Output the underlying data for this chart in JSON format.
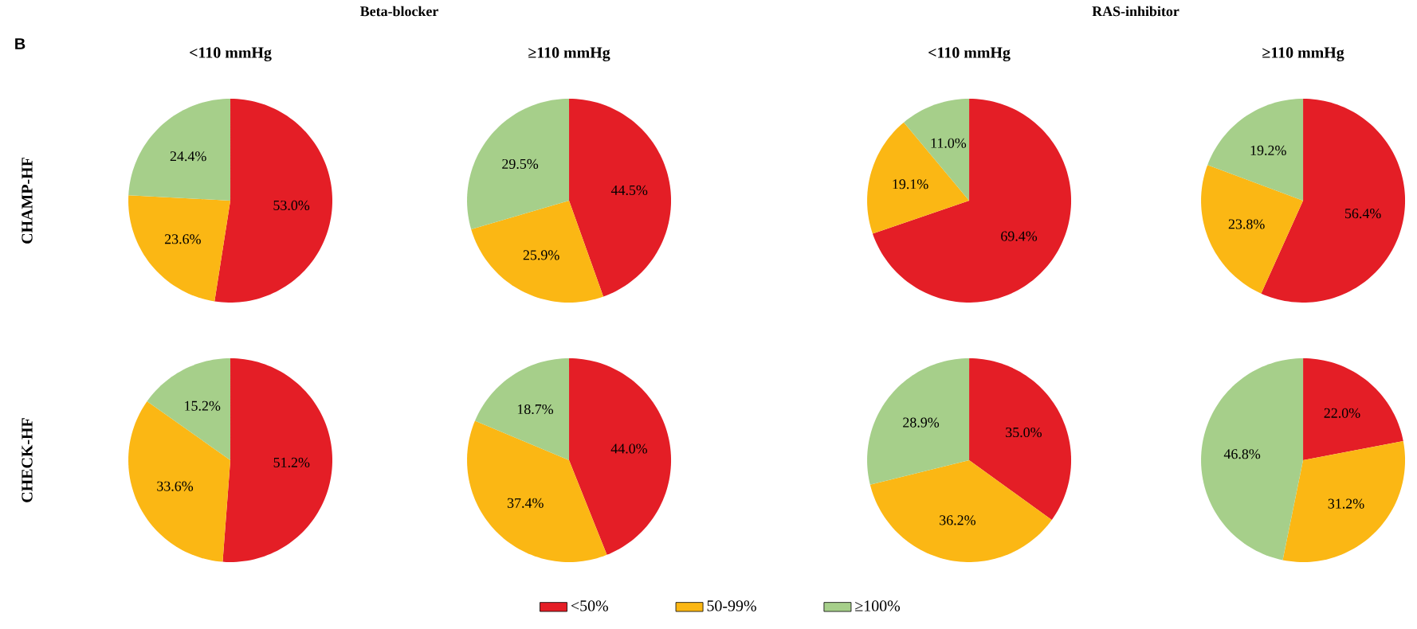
{
  "chart_data": [
    {
      "type": "pie",
      "title": "<110 mmHg",
      "ylabel": "CHAMP-HF",
      "annotations": [
        "B",
        "Beta-blocker"
      ],
      "categories": [
        null,
        null,
        null
      ],
      "values": [
        53.0,
        23.6,
        24.4
      ],
      "value_labels": [
        "53.0%",
        "23.6%",
        "24.4%"
      ],
      "colors": [
        "#e41e26",
        "#fbb714",
        "#a6cf8a"
      ]
    },
    {
      "type": "pie",
      "title": "≥110 mmHg",
      "categories": [
        null,
        null,
        null
      ],
      "values": [
        44.5,
        25.9,
        29.5
      ],
      "value_labels": [
        "44.5%",
        "25.9%",
        "29.5%"
      ],
      "colors": [
        "#e41e26",
        "#fbb714",
        "#a6cf8a"
      ]
    },
    {
      "type": "pie",
      "title": "<110 mmHg",
      "annotations": [
        "RAS-inhibitor"
      ],
      "categories": [
        null,
        null,
        null
      ],
      "values": [
        69.4,
        19.1,
        11.0
      ],
      "value_labels": [
        "69.4%",
        "19.1%",
        "11.0%"
      ],
      "colors": [
        "#e41e26",
        "#fbb714",
        "#a6cf8a"
      ]
    },
    {
      "type": "pie",
      "title": "≥110 mmHg",
      "categories": [
        null,
        null,
        null
      ],
      "values": [
        56.4,
        23.8,
        19.2
      ],
      "value_labels": [
        "56.4%",
        "23.8%",
        "19.2%"
      ],
      "colors": [
        "#e41e26",
        "#fbb714",
        "#a6cf8a"
      ]
    },
    {
      "type": "pie",
      "ylabel": "CHECK-HF",
      "categories": [
        null,
        null,
        null
      ],
      "values": [
        51.2,
        33.6,
        15.2
      ],
      "value_labels": [
        "51.2%",
        "33.6%",
        "15.2%"
      ],
      "colors": [
        "#e41e26",
        "#fbb714",
        "#a6cf8a"
      ]
    },
    {
      "type": "pie",
      "categories": [
        null,
        null,
        null
      ],
      "values": [
        44.0,
        37.4,
        18.7
      ],
      "value_labels": [
        "44.0%",
        "37.4%",
        "18.7%"
      ],
      "colors": [
        "#e41e26",
        "#fbb714",
        "#a6cf8a"
      ]
    },
    {
      "type": "pie",
      "categories": [
        null,
        null,
        null
      ],
      "values": [
        35.0,
        36.2,
        28.9
      ],
      "value_labels": [
        "35.0%",
        "36.2%",
        "28.9%"
      ],
      "colors": [
        "#e41e26",
        "#fbb714",
        "#a6cf8a"
      ]
    },
    {
      "type": "pie",
      "legend": "bottom",
      "categories": [
        "<50%",
        "50-99%",
        "≥100%"
      ],
      "values": [
        22.0,
        31.2,
        46.8
      ],
      "value_labels": [
        "22.0%",
        "31.2%",
        "46.8%"
      ],
      "colors": [
        "#e41e26",
        "#fbb714",
        "#a6cf8a"
      ]
    }
  ]
}
